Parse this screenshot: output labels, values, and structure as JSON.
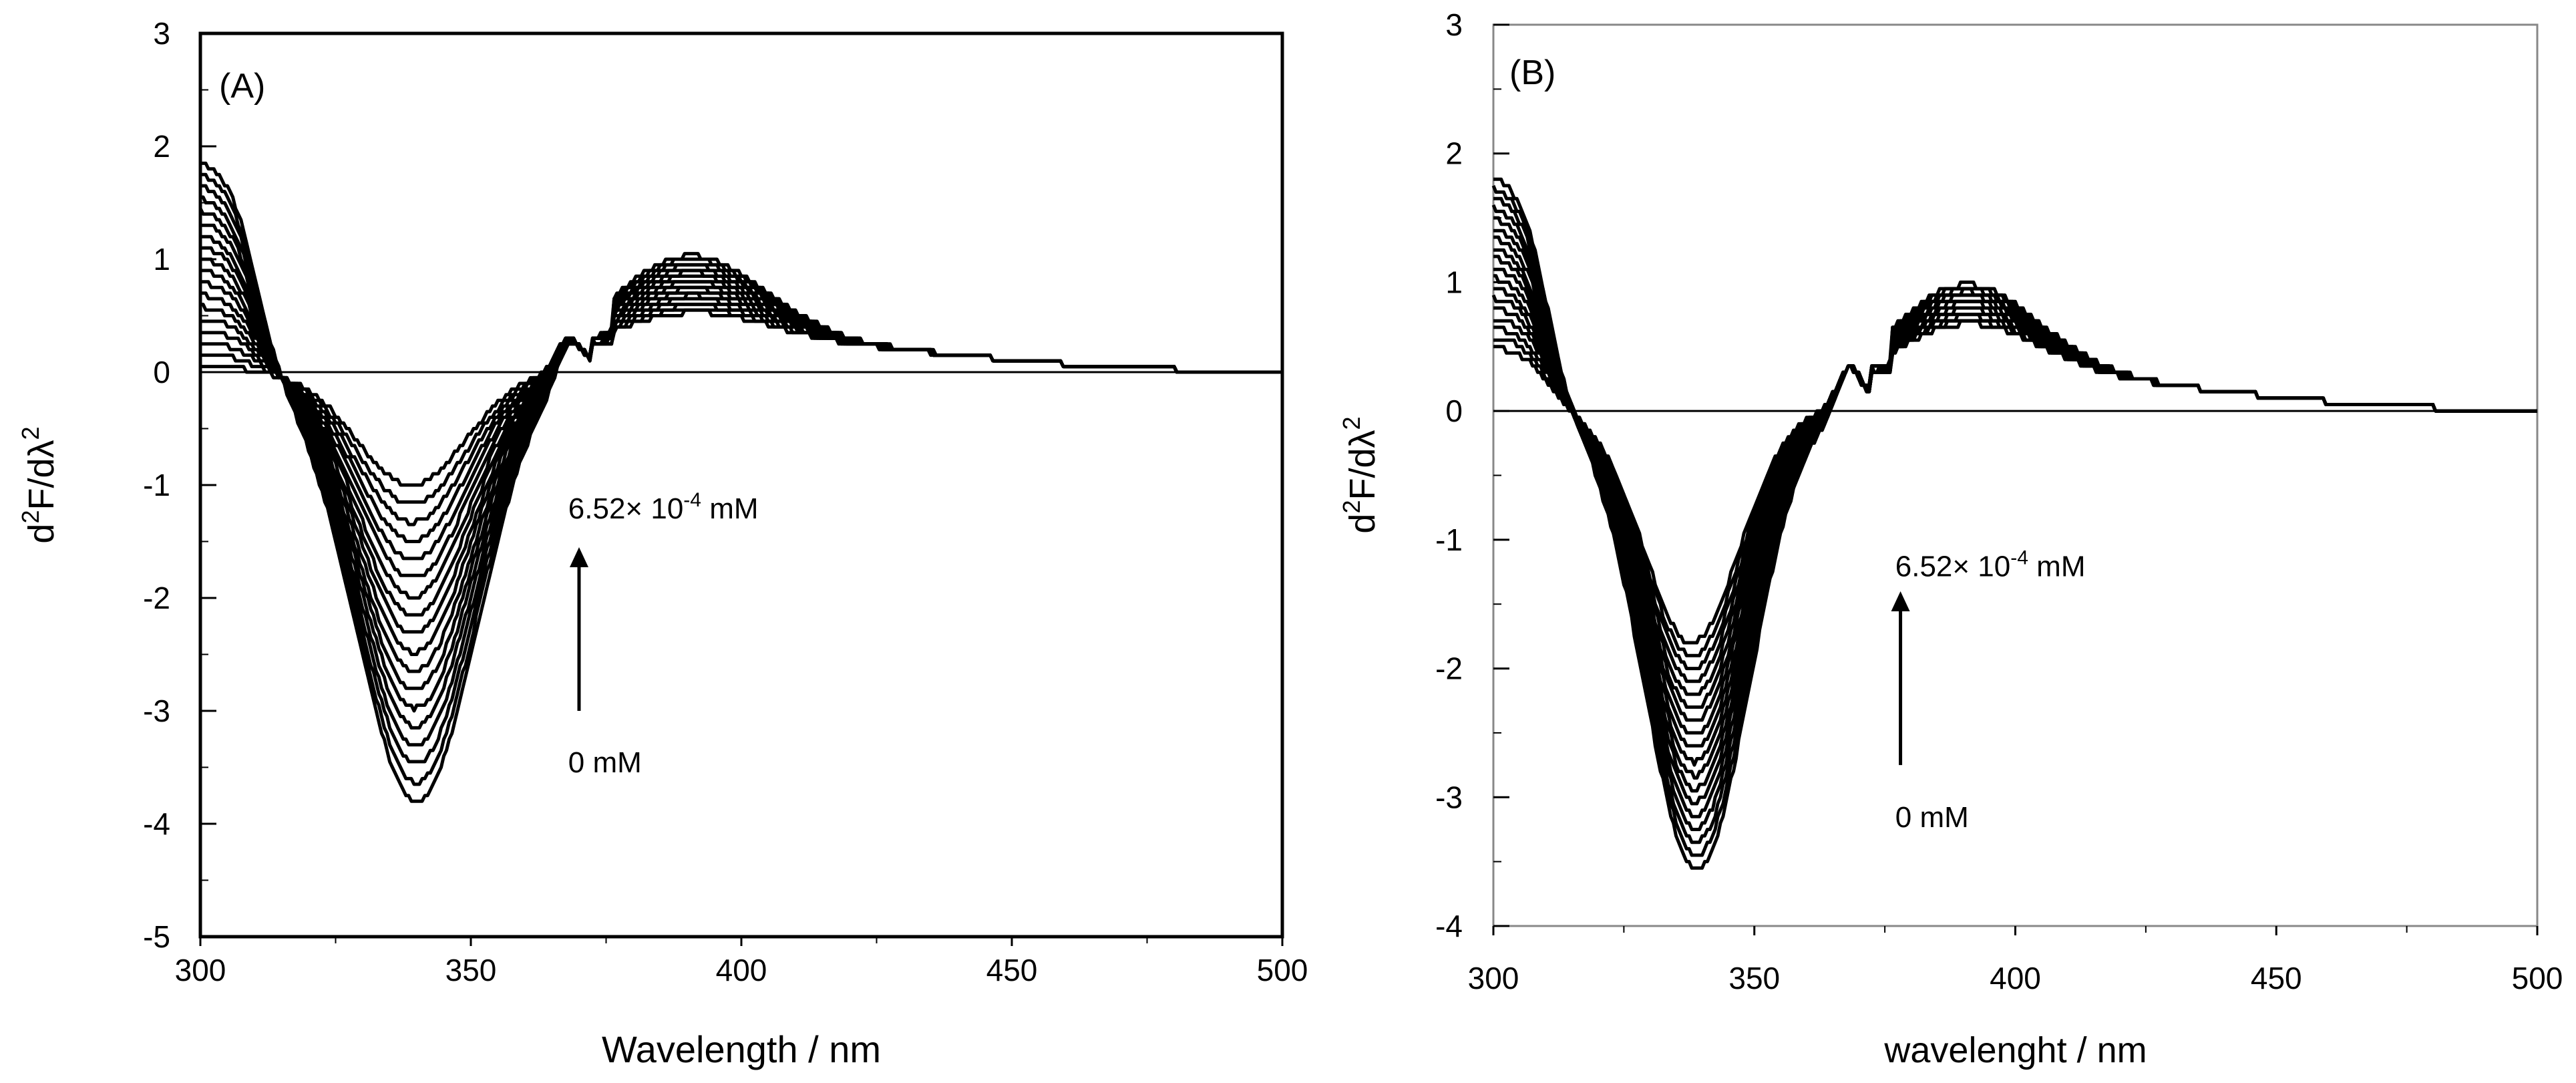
{
  "chart_data": [
    {
      "type": "line",
      "panel_label": "(A)",
      "xlabel": "Wavelength / nm",
      "ylabel_main": "d",
      "ylabel_sup1": "2",
      "ylabel_mid": "F/dλ",
      "ylabel_sup2": "2",
      "xlim": [
        300,
        500
      ],
      "ylim": [
        -5,
        3
      ],
      "xticks": [
        "300",
        "350",
        "400",
        "450",
        "500"
      ],
      "yticks": [
        "-5",
        "-4",
        "-3",
        "-2",
        "-1",
        "0",
        "1",
        "2",
        "3"
      ],
      "annotation_top": "6.52× 10",
      "annotation_top_exp": "-4",
      "annotation_top_unit": " mM",
      "annotation_bottom": "0 mM",
      "arrow": {
        "x": 370,
        "y_from": -3.0,
        "y_to": -1.55
      },
      "annotation_top_pos": {
        "x": 368,
        "y": -1.2
      },
      "annotation_bottom_pos": {
        "x": 368,
        "y": -3.45
      },
      "series_count": 18,
      "series_params": {
        "min_depth": [
          1.0,
          3.8
        ],
        "min_center": [
          339,
          340
        ],
        "min_width": [
          10,
          11
        ],
        "left_peak": [
          0.05,
          1.9
        ],
        "left_step": 0.13,
        "right_hump": [
          0.3,
          0.8
        ],
        "right_hump_center": 390,
        "cross_point": [
          322,
          -0.6
        ],
        "tail_end": 485
      }
    },
    {
      "type": "line",
      "panel_label": "(B)",
      "xlabel": "wavelenght / nm",
      "ylabel_main": "d",
      "ylabel_sup1": "2",
      "ylabel_mid": "F/dλ",
      "ylabel_sup2": "2",
      "xlim": [
        300,
        500
      ],
      "ylim": [
        -4,
        3
      ],
      "xticks": [
        "300",
        "350",
        "400",
        "450",
        "500"
      ],
      "yticks": [
        "-4",
        "-3",
        "-2",
        "-1",
        "0",
        "1",
        "2",
        "3"
      ],
      "annotation_top": "6.52× 10",
      "annotation_top_exp": "-4",
      "annotation_top_unit": " mM",
      "annotation_bottom": "0 mM",
      "arrow": {
        "x": 378,
        "y_from": -2.75,
        "y_to": -1.4
      },
      "annotation_top_pos": {
        "x": 377,
        "y": -1.2
      },
      "annotation_bottom_pos": {
        "x": 377,
        "y": -3.15
      },
      "series_count": 18,
      "series_params": {
        "min_depth": [
          1.8,
          3.55
        ],
        "min_center": [
          338,
          339
        ],
        "min_width": [
          9,
          10
        ],
        "left_peak": [
          0.5,
          1.85
        ],
        "left_step": 0.13,
        "right_hump": [
          0.45,
          0.75
        ],
        "right_hump_center": 390,
        "cross_point": [
          324,
          -0.85
        ],
        "tail_end": 480
      }
    }
  ]
}
